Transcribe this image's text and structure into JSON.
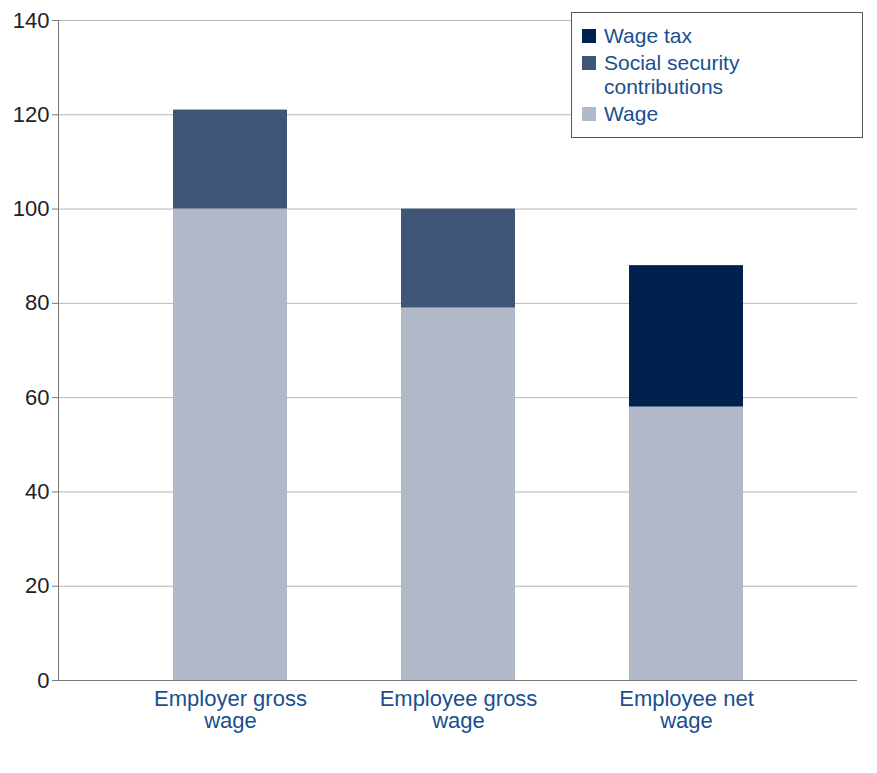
{
  "chart_data": {
    "type": "bar",
    "stacked": true,
    "categories": [
      "Employer gross wage",
      "Employee gross wage",
      "Employee net wage"
    ],
    "series": [
      {
        "name": "Wage tax",
        "color": "#00204e",
        "values": [
          null,
          null,
          30
        ]
      },
      {
        "name": "Social security contributions",
        "color": "#3f5578",
        "values": [
          21,
          21,
          null
        ]
      },
      {
        "name": "Wage",
        "color": "#b1b8c8",
        "values": [
          100,
          79,
          58
        ]
      }
    ],
    "ylim": [
      0,
      140
    ],
    "yticks": [
      0,
      20,
      40,
      60,
      80,
      100,
      120,
      140
    ],
    "grid": true,
    "legend": "top-right"
  }
}
